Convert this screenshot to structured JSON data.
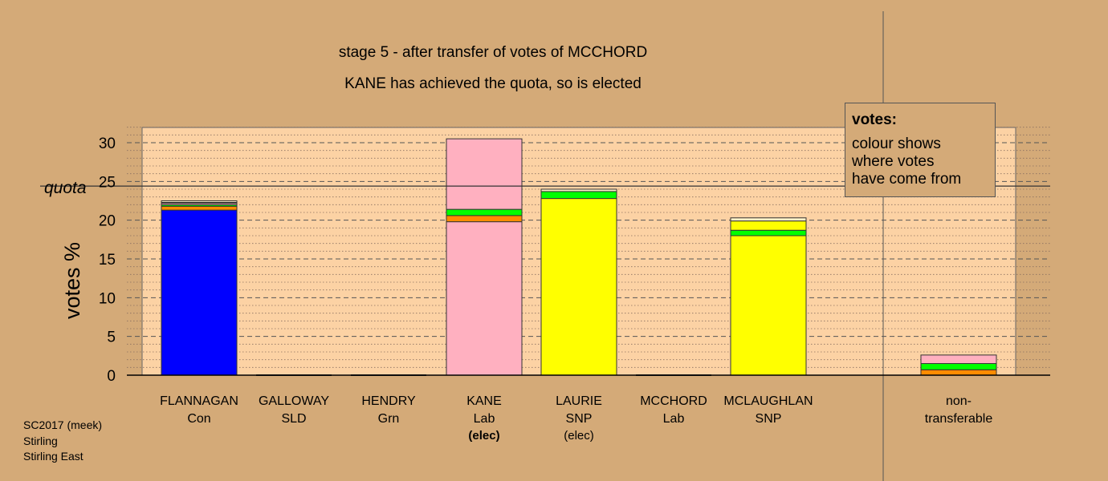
{
  "title": {
    "line1": "stage 5 - after transfer of votes of MCCHORD",
    "line2": "KANE has achieved the quota, so is elected"
  },
  "legend": {
    "heading": "votes:",
    "lines": [
      "colour shows",
      "where votes",
      "have come from"
    ]
  },
  "footer": {
    "lines": [
      "SC2017 (meek)",
      "Stirling",
      "Stirling East"
    ]
  },
  "chart_data": {
    "type": "bar",
    "stacked": true,
    "ylabel": "votes %",
    "ylim": [
      0,
      32
    ],
    "yticks": [
      0,
      5,
      10,
      15,
      20,
      25,
      30
    ],
    "grid": true,
    "quota": {
      "label": "quota",
      "value": 24.4
    },
    "categories": [
      {
        "name": "FLANNAGAN",
        "party": "Con",
        "status": ""
      },
      {
        "name": "GALLOWAY",
        "party": "SLD",
        "status": ""
      },
      {
        "name": "HENDRY",
        "party": "Grn",
        "status": ""
      },
      {
        "name": "KANE",
        "party": "Lab",
        "status": "(elec)",
        "status_bold": true
      },
      {
        "name": "LAURIE",
        "party": "SNP",
        "status": "(elec)",
        "status_bold": false
      },
      {
        "name": "MCCHORD",
        "party": "Lab",
        "status": ""
      },
      {
        "name": "MCLAUGHLAN",
        "party": "SNP",
        "status": ""
      },
      {
        "name": "non-\ntransferable",
        "party": "",
        "status": "",
        "separate": true
      }
    ],
    "segment_colors": {
      "Con": "#0000ff",
      "SLD": "#ff8c00",
      "Grn": "#00ff00",
      "Lab": "#ffb0c0",
      "SNP": "#ffff00",
      "other": "#fff0c8"
    },
    "stacks": [
      [
        {
          "source": "Con",
          "value": 21.3
        },
        {
          "source": "SLD",
          "value": 0.5
        },
        {
          "source": "Grn",
          "value": 0.2
        },
        {
          "source": "Lab",
          "value": 0.2
        },
        {
          "source": "SNP",
          "value": 0.1
        },
        {
          "source": "other",
          "value": 0.2
        }
      ],
      [],
      [],
      [
        {
          "source": "Lab",
          "value": 19.8
        },
        {
          "source": "SLD",
          "value": 0.8
        },
        {
          "source": "Grn",
          "value": 0.8
        },
        {
          "source": "Lab",
          "value": 9.1
        }
      ],
      [
        {
          "source": "SNP",
          "value": 22.8
        },
        {
          "source": "Grn",
          "value": 0.9
        },
        {
          "source": "other",
          "value": 0.3
        }
      ],
      [],
      [
        {
          "source": "SNP",
          "value": 18.0
        },
        {
          "source": "Grn",
          "value": 0.7
        },
        {
          "source": "SNP",
          "value": 1.2
        },
        {
          "source": "other",
          "value": 0.4
        }
      ],
      [
        {
          "source": "SLD",
          "value": 0.7
        },
        {
          "source": "Grn",
          "value": 0.8
        },
        {
          "source": "Lab",
          "value": 1.1
        }
      ]
    ]
  }
}
